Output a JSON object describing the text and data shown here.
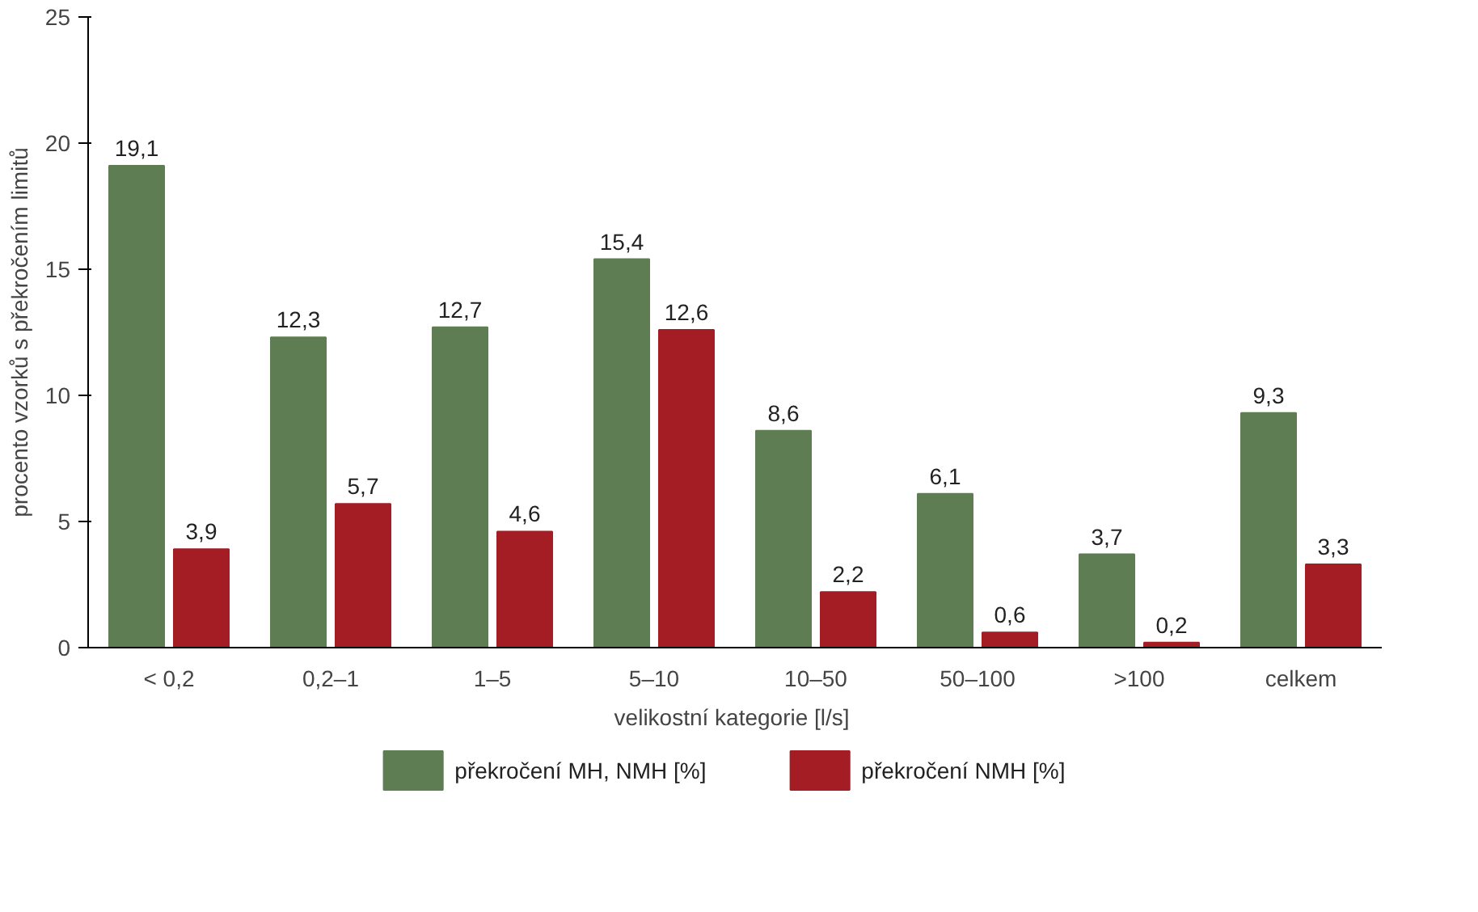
{
  "chart_data": {
    "type": "bar",
    "xlabel": "velikostní  kategorie [l/s]",
    "ylabel": "procento vzorků s překročením limitů",
    "categories": [
      "< 0,2",
      "0,2–1",
      "1–5",
      "5–10",
      "10–50",
      "50–100",
      ">100",
      "celkem"
    ],
    "series": [
      {
        "name": "překročení MH, NMH [%]",
        "color": "#5f7d52",
        "values": [
          19.1,
          12.3,
          12.7,
          15.4,
          8.6,
          6.1,
          3.7,
          9.3
        ],
        "value_labels": [
          "19,1",
          "12,3",
          "12,7",
          "15,4",
          "8,6",
          "6,1",
          "3,7",
          "9,3"
        ]
      },
      {
        "name": "překročení NMH [%]",
        "color": "#a51d24",
        "values": [
          3.9,
          5.7,
          4.6,
          12.6,
          2.2,
          0.6,
          0.2,
          3.3
        ],
        "value_labels": [
          "3,9",
          "5,7",
          "4,6",
          "12,6",
          "2,2",
          "0,6",
          "0,2",
          "3,3"
        ]
      }
    ],
    "ylim": [
      0,
      25
    ],
    "yticks": [
      0,
      5,
      10,
      15,
      20,
      25
    ],
    "grid": false,
    "legend": "bottom"
  }
}
